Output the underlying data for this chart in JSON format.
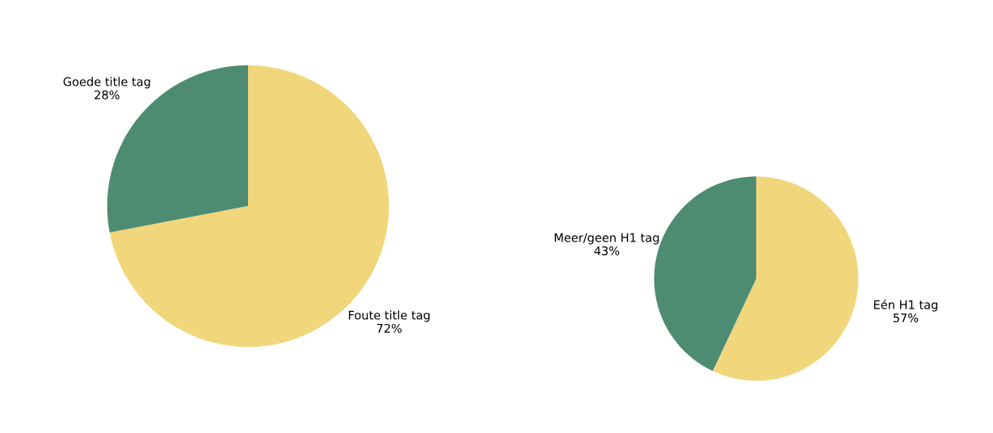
{
  "chart_data": [
    {
      "type": "pie",
      "categories": [
        "Foute title tag",
        "Goede title tag"
      ],
      "values": [
        72,
        28
      ],
      "value_labels": [
        "72%",
        "28%"
      ],
      "colors": [
        "#f2d67c",
        "#4d8c73"
      ],
      "legend": false
    },
    {
      "type": "pie",
      "categories": [
        "Eén H1 tag",
        "Meer/geen H1 tag"
      ],
      "values": [
        57,
        43
      ],
      "value_labels": [
        "57%",
        "43%"
      ],
      "colors": [
        "#f2d67c",
        "#4d8c73"
      ],
      "legend": false
    }
  ]
}
